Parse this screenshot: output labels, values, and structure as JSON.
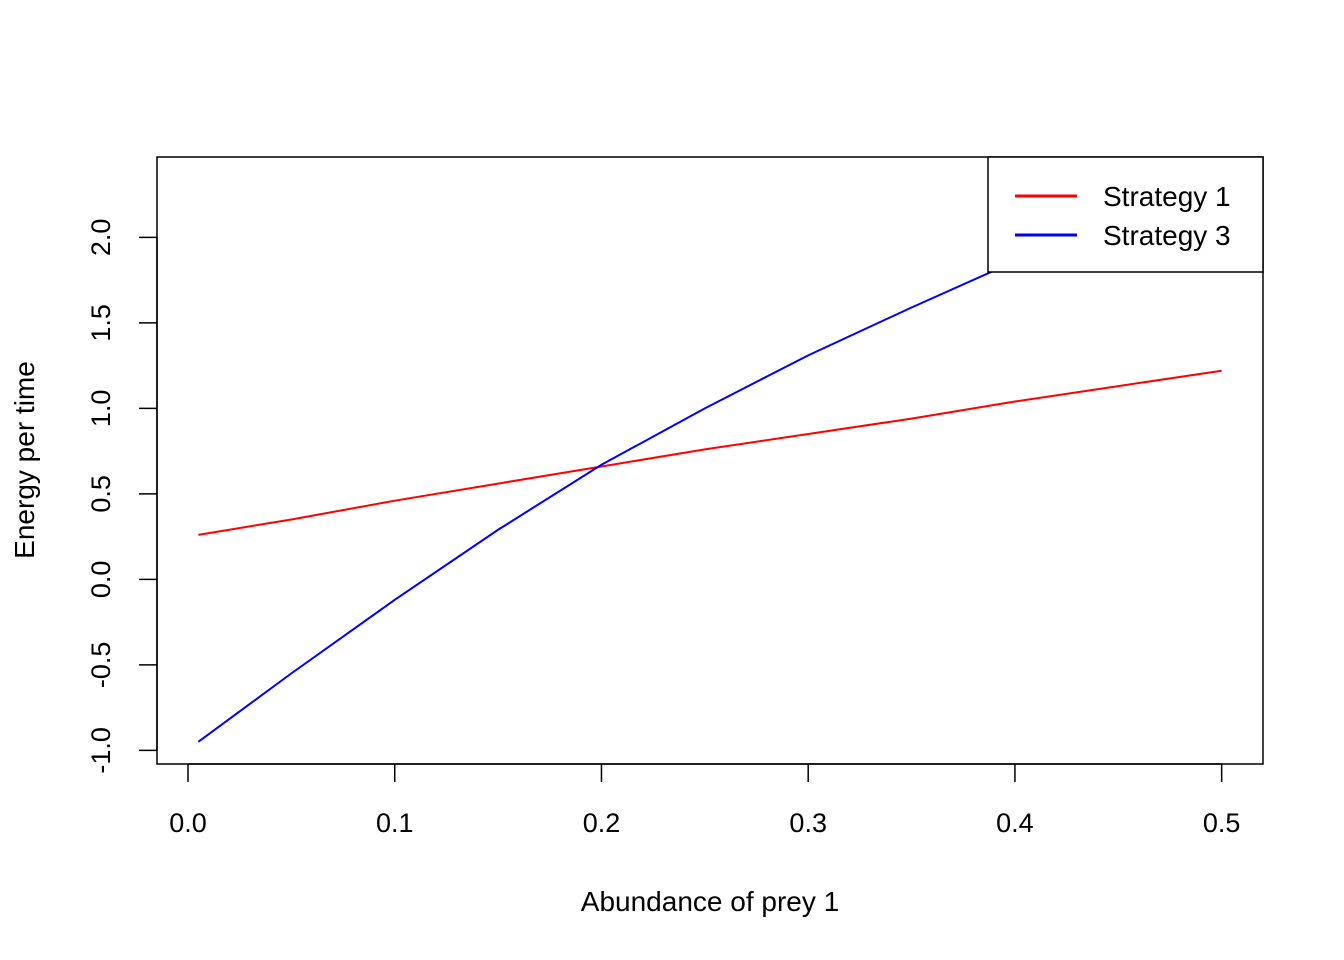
{
  "chart_data": {
    "type": "line",
    "title": "",
    "xlabel": "Abundance of prey 1",
    "ylabel": "Energy per time",
    "xlim": [
      -0.015,
      0.52
    ],
    "ylim": [
      -1.08,
      2.47
    ],
    "xticks": [
      0.0,
      0.1,
      0.2,
      0.3,
      0.4,
      0.5
    ],
    "xtick_labels": [
      "0.0",
      "0.1",
      "0.2",
      "0.3",
      "0.4",
      "0.5"
    ],
    "yticks": [
      -1.0,
      -0.5,
      0.0,
      0.5,
      1.0,
      1.5,
      2.0
    ],
    "ytick_labels": [
      "-1.0",
      "-0.5",
      "0.0",
      "0.5",
      "1.0",
      "1.5",
      "2.0"
    ],
    "grid": false,
    "legend_position": "top-right",
    "series": [
      {
        "name": "Strategy 1",
        "color": "#ff0000",
        "x": [
          0.005,
          0.05,
          0.1,
          0.15,
          0.2,
          0.25,
          0.3,
          0.35,
          0.4,
          0.45,
          0.5
        ],
        "y": [
          0.26,
          0.35,
          0.46,
          0.56,
          0.66,
          0.76,
          0.85,
          0.94,
          1.04,
          1.13,
          1.22
        ]
      },
      {
        "name": "Strategy 3",
        "color": "#0000ff",
        "x": [
          0.005,
          0.05,
          0.1,
          0.15,
          0.2,
          0.25,
          0.3,
          0.35,
          0.4,
          0.45,
          0.5
        ],
        "y": [
          -0.95,
          -0.55,
          -0.12,
          0.29,
          0.67,
          1.0,
          1.31,
          1.59,
          1.86,
          2.1,
          2.34
        ]
      }
    ]
  }
}
